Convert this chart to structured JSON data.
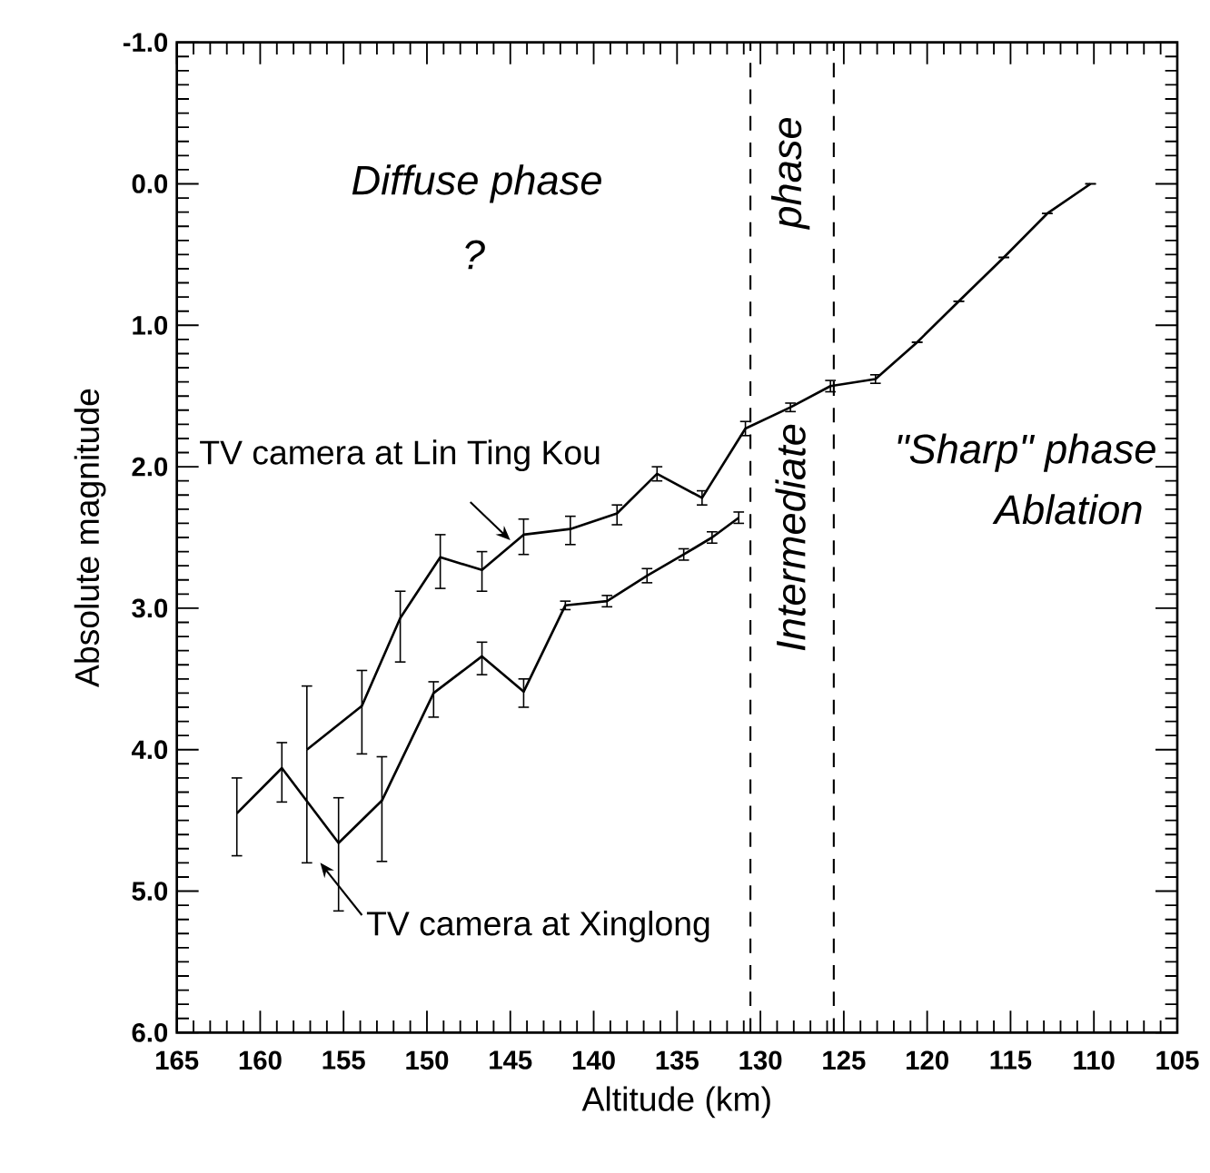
{
  "chart_data": {
    "type": "line",
    "xlabel": "Altitude (km)",
    "ylabel": "Absolute magnitude",
    "xlim": [
      165,
      105
    ],
    "ylim": [
      6.0,
      -1.0
    ],
    "xticks": [
      165,
      160,
      155,
      150,
      145,
      140,
      135,
      130,
      125,
      120,
      115,
      110,
      105
    ],
    "yticks": [
      {
        "value": -1.0,
        "label": "-1.0"
      },
      {
        "value": 0.0,
        "label": "0.0"
      },
      {
        "value": 1.0,
        "label": "1.0"
      },
      {
        "value": 2.0,
        "label": "2.0"
      },
      {
        "value": 3.0,
        "label": "3.0"
      },
      {
        "value": 4.0,
        "label": "4.0"
      },
      {
        "value": 5.0,
        "label": "5.0"
      },
      {
        "value": 6.0,
        "label": "6.0"
      }
    ],
    "marker": "none",
    "line_style": "solid",
    "grid": false,
    "series": [
      {
        "color": "#000000",
        "x": [
          157.2,
          153.9,
          151.6,
          149.2,
          146.7,
          144.2,
          141.4,
          138.6,
          136.2,
          133.5,
          130.9,
          128.2,
          125.8,
          123.1,
          120.6,
          118.1,
          115.4,
          112.8,
          110.2
        ],
        "values": [
          4.0,
          3.69,
          3.07,
          2.64,
          2.73,
          2.48,
          2.44,
          2.33,
          2.05,
          2.22,
          1.73,
          1.58,
          1.43,
          1.38,
          1.12,
          0.83,
          0.52,
          0.21,
          0.0
        ],
        "errors": [
          [
            3.55,
            4.8
          ],
          [
            3.44,
            4.03
          ],
          [
            2.88,
            3.38
          ],
          [
            2.48,
            2.86
          ],
          [
            2.6,
            2.88
          ],
          [
            2.37,
            2.62
          ],
          [
            2.35,
            2.55
          ],
          [
            2.27,
            2.41
          ],
          [
            2.0,
            2.1
          ],
          [
            2.17,
            2.27
          ],
          [
            1.68,
            1.78
          ],
          [
            1.55,
            1.61
          ],
          [
            1.39,
            1.47
          ],
          [
            1.35,
            1.41
          ],
          null,
          null,
          null,
          null,
          null
        ]
      },
      {
        "color": "#000000",
        "x": [
          161.4,
          158.7,
          155.3,
          152.7,
          149.6,
          146.7,
          144.2,
          141.7,
          139.2,
          136.8,
          134.6,
          132.9,
          131.3
        ],
        "values": [
          4.45,
          4.13,
          4.66,
          4.36,
          3.6,
          3.34,
          3.59,
          2.98,
          2.95,
          2.77,
          2.62,
          2.5,
          2.36
        ],
        "errors": [
          [
            4.2,
            4.75
          ],
          [
            3.95,
            4.37
          ],
          [
            4.34,
            5.14
          ],
          [
            4.05,
            4.79
          ],
          [
            3.52,
            3.77
          ],
          [
            3.24,
            3.47
          ],
          [
            3.5,
            3.7
          ],
          [
            2.95,
            3.01
          ],
          [
            2.91,
            2.99
          ],
          [
            2.72,
            2.82
          ],
          [
            2.58,
            2.66
          ],
          [
            2.46,
            2.54
          ],
          [
            2.32,
            2.4
          ]
        ]
      }
    ],
    "ref_lines": [
      {
        "axis": "x",
        "value": 130.6,
        "line_style": "dashed"
      },
      {
        "axis": "x",
        "value": 125.6,
        "line_style": "dashed"
      }
    ],
    "annotations": [
      "Diffuse phase",
      "?",
      "Intermediate",
      "phase",
      "\"Sharp\" phase",
      "Ablation",
      {
        "text": "TV camera at Lin Ting Kou",
        "x": 145.0,
        "y": 2.52
      },
      {
        "text": "TV camera at Xinglong",
        "x": 156.4,
        "y": 4.8
      }
    ]
  }
}
